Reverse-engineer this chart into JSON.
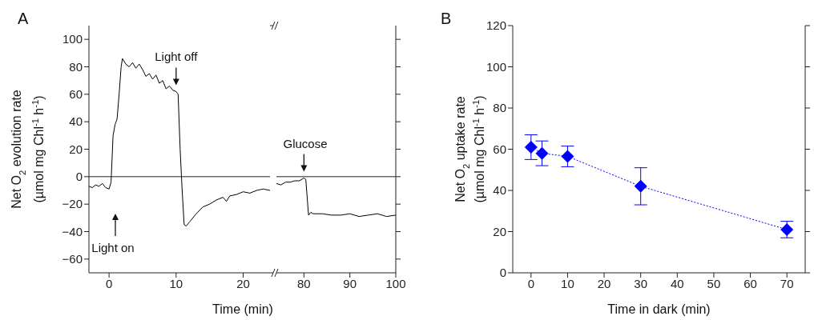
{
  "chart_data": [
    {
      "type": "line",
      "title": "A",
      "xlabel": "Time (min)",
      "ylabel": "Net O$_{2}$ evolution rate\n(µmol mg Chl$^{-1}$ h$^{-1}$)",
      "x": [
        -3,
        -2.5,
        -2,
        -1.5,
        -1,
        -0.5,
        0,
        0.3,
        0.6,
        0.9,
        1.2,
        1.5,
        1.8,
        2,
        2.5,
        3,
        3.5,
        4,
        4.5,
        5,
        5.5,
        6,
        6.5,
        7,
        7.5,
        8,
        8.5,
        9,
        9.5,
        10,
        10.3,
        10.6,
        10.9,
        11.2,
        11.5,
        12,
        13,
        14,
        15,
        16,
        17,
        17.5,
        18,
        19,
        20,
        21,
        22,
        23,
        24
      ],
      "series": [
        {
          "color": "#000000",
          "values": [
            -7,
            -8,
            -6,
            -7,
            -5,
            -8,
            -9,
            -4,
            30,
            38,
            42,
            60,
            80,
            86,
            82,
            80,
            83,
            79,
            82,
            78,
            73,
            75,
            71,
            74,
            68,
            70,
            64,
            66,
            63,
            62,
            60,
            20,
            -10,
            -35,
            -36,
            -33,
            -27,
            -22,
            -20,
            -17,
            -15,
            -18,
            -14,
            -13,
            -11,
            -12,
            -10,
            -9,
            -10
          ]
        }
      ],
      "xlim": [
        -3,
        24
      ],
      "xticks": [
        0,
        10,
        20
      ],
      "ylim": [
        -70,
        110
      ],
      "yticks": [
        {
          "value": -60,
          "label": "−60"
        },
        {
          "value": -40,
          "label": "−40"
        },
        {
          "value": -20,
          "label": "−20"
        },
        0,
        20,
        40,
        60,
        80,
        100
      ],
      "ref_lines": [
        {
          "axis": "y",
          "value": 0
        }
      ],
      "annotations": [
        "Light on",
        {
          "text": "Light off",
          "x": 10,
          "y": 62
        }
      ]
    },
    {
      "type": "line",
      "x": [
        74,
        75,
        76,
        77,
        78,
        79,
        80,
        80.4,
        81,
        81.5,
        82,
        84,
        86,
        88,
        90,
        92,
        94,
        96,
        98,
        100
      ],
      "series": [
        {
          "color": "#000000",
          "values": [
            -5,
            -6,
            -4,
            -4,
            -3,
            -3,
            -1,
            -2,
            -28,
            -26,
            -27,
            -27,
            -28,
            -28,
            -27,
            -29,
            -28,
            -27,
            -29,
            -28
          ]
        }
      ],
      "xlim": [
        74,
        100
      ],
      "xticks": [
        80,
        90,
        100
      ],
      "ylim": [
        -70,
        110
      ],
      "yticks": [
        -60,
        -40,
        -20,
        0,
        20,
        40,
        60,
        80,
        100
      ],
      "tick_labels": "x",
      "ref_lines": [
        {
          "axis": "y",
          "value": 0
        }
      ],
      "annotations": [
        {
          "text": "Glucose",
          "x": 80,
          "y": -1
        }
      ]
    },
    {
      "type": "line",
      "title": "B",
      "xlabel": "Time in dark (min)",
      "ylabel": "Net O$_{2}$ uptake rate\n(µmol mg Chl$^{-1}$ h$^{-1}$)",
      "x": [
        0,
        3,
        10,
        30,
        70
      ],
      "series": [
        {
          "color": "#0000ff",
          "values": [
            61,
            58,
            56.5,
            42,
            21
          ],
          "errors": [
            6,
            6,
            5,
            9,
            4
          ]
        }
      ],
      "marker": "diamond",
      "line_style": "dotted",
      "xlim": [
        -5,
        75
      ],
      "xticks": [
        0,
        10,
        20,
        30,
        40,
        50,
        60,
        70
      ],
      "ylim": [
        0,
        120
      ],
      "yticks": [
        0,
        20,
        40,
        60,
        80,
        100,
        120
      ]
    }
  ]
}
